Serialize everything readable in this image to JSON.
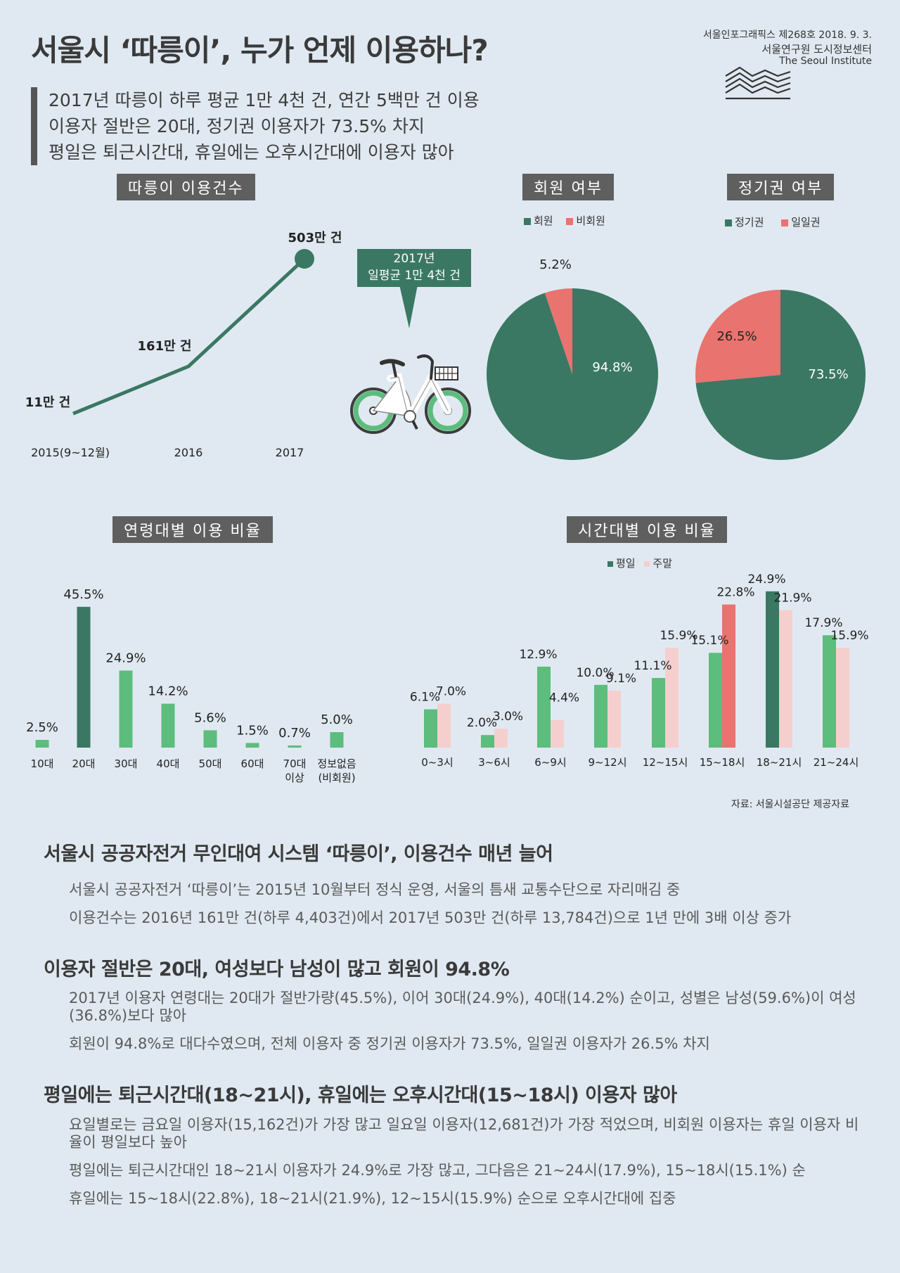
{
  "header": {
    "title": "서울시 ‘따릉이’, 누가 언제 이용하나?",
    "issue": "서울인포그래픽스 제268호 2018. 9. 3.",
    "org": "서울연구원 도시정보센터",
    "org_en": "The Seoul Institute"
  },
  "summary": [
    "2017년 따릉이 하루 평균 1만 4천 건, 연간 5백만 건 이용",
    "이용자 절반은 20대, 정기권 이용자가 73.5% 차지",
    "평일은 퇴근시간대, 휴일에는 오후시간대에 이용자 많아"
  ],
  "callout": {
    "line1": "2017년",
    "line2": "일평균 1만 4천 건"
  },
  "colors": {
    "green": "#3a7863",
    "green_light": "#5cbd7c",
    "red": "#e8736f",
    "pink": "#f5cfcd"
  },
  "chart_data": [
    {
      "type": "line",
      "title": "따릉이 이용건수",
      "categories": [
        "2015(9~12월)",
        "2016",
        "2017"
      ],
      "values": [
        11,
        161,
        503
      ],
      "unit": "만 건",
      "data_labels": [
        "11만 건",
        "161만 건",
        "503만 건"
      ]
    },
    {
      "type": "pie",
      "title": "회원 여부",
      "legend": [
        "회원",
        "비회원"
      ],
      "values": [
        94.8,
        5.2
      ],
      "data_labels": [
        "94.8%",
        "5.2%"
      ]
    },
    {
      "type": "pie",
      "title": "정기권 여부",
      "legend": [
        "정기권",
        "일일권"
      ],
      "values": [
        73.5,
        26.5
      ],
      "data_labels": [
        "73.5%",
        "26.5%"
      ]
    },
    {
      "type": "bar",
      "title": "연령대별 이용 비율",
      "categories": [
        "10대",
        "20대",
        "30대",
        "40대",
        "50대",
        "60대",
        "70대\n이상",
        "정보없음\n(비회원)"
      ],
      "values": [
        2.5,
        45.5,
        24.9,
        14.2,
        5.6,
        1.5,
        0.7,
        5.0
      ],
      "data_labels": [
        "2.5%",
        "45.5%",
        "24.9%",
        "14.2%",
        "5.6%",
        "1.5%",
        "0.7%",
        "5.0%"
      ],
      "ylim": [
        0,
        50
      ]
    },
    {
      "type": "bar",
      "title": "시간대별 이용 비율",
      "legend": [
        "평일",
        "주말"
      ],
      "categories": [
        "0~3시",
        "3~6시",
        "6~9시",
        "9~12시",
        "12~15시",
        "15~18시",
        "18~21시",
        "21~24시"
      ],
      "series": [
        {
          "name": "평일",
          "values": [
            6.1,
            2.0,
            12.9,
            10.0,
            11.1,
            15.1,
            24.9,
            17.9
          ],
          "labels": [
            "6.1%",
            "2.0%",
            "12.9%",
            "10.0%",
            "11.1%",
            "15.1%",
            "24.9%",
            "17.9%"
          ]
        },
        {
          "name": "주말",
          "values": [
            7.0,
            3.0,
            4.4,
            9.1,
            15.9,
            22.8,
            21.9,
            15.9
          ],
          "labels": [
            "7.0%",
            "3.0%",
            "4.4%",
            "9.1%",
            "15.9%",
            "22.8%",
            "21.9%",
            "15.9%"
          ]
        }
      ],
      "ylim": [
        0,
        28
      ]
    }
  ],
  "source": "자료: 서울시설공단 제공자료",
  "sections": [
    {
      "heading": "서울시 공공자전거 무인대여 시스템 ‘따릉이’, 이용건수 매년 늘어",
      "paragraphs": [
        "서울시 공공자전거 ‘따릉이’는 2015년 10월부터 정식 운영, 서울의 틈새 교통수단으로 자리매김 중",
        "이용건수는 2016년 161만 건(하루 4,403건)에서 2017년 503만 건(하루 13,784건)으로 1년 만에 3배 이상 증가"
      ]
    },
    {
      "heading": "이용자 절반은 20대, 여성보다 남성이 많고 회원이 94.8%",
      "paragraphs": [
        "2017년 이용자 연령대는 20대가 절반가량(45.5%), 이어 30대(24.9%), 40대(14.2%) 순이고, 성별은 남성(59.6%)이 여성(36.8%)보다 많아",
        "회원이 94.8%로 대다수였으며, 전체 이용자 중 정기권 이용자가 73.5%, 일일권 이용자가 26.5% 차지"
      ]
    },
    {
      "heading": "평일에는 퇴근시간대(18~21시), 휴일에는 오후시간대(15~18시) 이용자 많아",
      "paragraphs": [
        "요일별로는 금요일 이용자(15,162건)가 가장 많고 일요일 이용자(12,681건)가 가장 적었으며, 비회원 이용자는 휴일 이용자 비율이 평일보다 높아",
        "평일에는 퇴근시간대인 18~21시 이용자가 24.9%로 가장 많고, 그다음은 21~24시(17.9%), 15~18시(15.1%) 순",
        "휴일에는 15~18시(22.8%), 18~21시(21.9%), 12~15시(15.9%) 순으로 오후시간대에 집중"
      ]
    }
  ]
}
